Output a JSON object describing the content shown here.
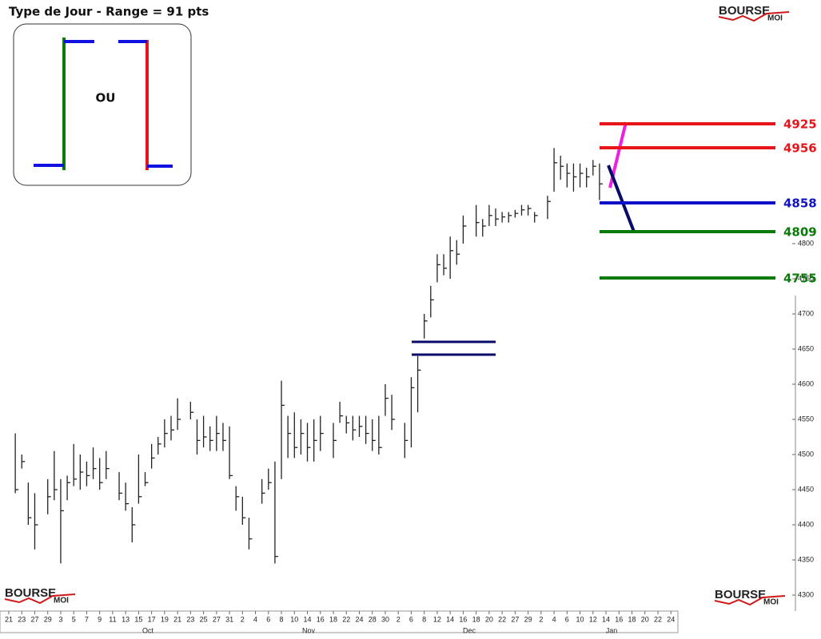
{
  "chart_data": {
    "type": "ohlc",
    "title": "Type de Jour - Range = 91 pts",
    "inset_label": "OU",
    "logo": {
      "main": "BOURSE",
      "sub": "MOI"
    },
    "color": "#222222",
    "categories": [
      "21",
      null,
      "23",
      null,
      "27",
      null,
      "29",
      null,
      "3",
      null,
      "5",
      null,
      "7",
      null,
      "9",
      null,
      "11",
      null,
      "13",
      null,
      "15",
      null,
      "17",
      null,
      "19",
      null,
      "21",
      null,
      "23",
      null,
      "25",
      null,
      "27",
      null,
      "31",
      null,
      "2",
      null,
      "4",
      null,
      "6",
      null,
      "8",
      null,
      "10",
      null,
      "14",
      null,
      "16",
      null,
      "18",
      null,
      "22",
      null,
      "24",
      null,
      "28",
      null,
      "30",
      null,
      "2",
      null,
      "6",
      null,
      "8",
      null,
      "12",
      null,
      "14",
      null,
      "16",
      null,
      "18",
      null,
      "20",
      null,
      "22",
      null,
      "27",
      null,
      "29",
      null,
      "2",
      null,
      "4",
      null,
      "6",
      null,
      "10",
      null,
      "12",
      null,
      "14",
      null,
      "16",
      null,
      "18",
      null,
      "20",
      null,
      "22",
      null,
      "24",
      null
    ],
    "months": [
      "Oct",
      "Nov",
      "Dec",
      "Jan"
    ],
    "high": [
      null,
      4530,
      4500,
      4460,
      4445,
      null,
      4465,
      4505,
      4465,
      4470,
      4515,
      4500,
      4490,
      4510,
      4495,
      4505,
      null,
      4475,
      4460,
      4425,
      4500,
      4475,
      4515,
      4525,
      4550,
      4555,
      4580,
      null,
      4575,
      4550,
      4555,
      4540,
      4555,
      4545,
      4540,
      4455,
      4440,
      4410,
      null,
      4465,
      4480,
      4490,
      4605,
      4555,
      4560,
      4550,
      4545,
      4550,
      4555,
      null,
      4545,
      4575,
      4555,
      4555,
      4555,
      4555,
      4550,
      4555,
      4600,
      4585,
      null,
      4545,
      4610,
      4640,
      4700,
      4740,
      4785,
      4785,
      4810,
      4805,
      4840,
      null,
      4855,
      4835,
      4855,
      4850,
      4845,
      4845,
      4848,
      4855,
      4855,
      4845,
      null,
      4868,
      4936,
      4925,
      4914,
      4914,
      4914,
      4908,
      4919,
      4914,
      null,
      null,
      null,
      null,
      null,
      null,
      null,
      null,
      null,
      null,
      null,
      null
    ],
    "low": [
      null,
      4445,
      4480,
      4400,
      4365,
      null,
      4415,
      4435,
      4345,
      4435,
      4455,
      4450,
      4455,
      4465,
      4450,
      4465,
      null,
      4435,
      4420,
      4375,
      4430,
      4455,
      4480,
      4500,
      4510,
      4520,
      4535,
      null,
      4550,
      4500,
      4510,
      4505,
      4505,
      4505,
      4465,
      4420,
      4400,
      4365,
      null,
      4430,
      4450,
      4345,
      4465,
      4495,
      4495,
      4500,
      4490,
      4490,
      4505,
      null,
      4495,
      4545,
      4530,
      4520,
      4525,
      4515,
      4505,
      4500,
      4555,
      4535,
      null,
      4495,
      4510,
      4560,
      4665,
      4695,
      4745,
      4755,
      4750,
      4770,
      4800,
      null,
      4810,
      4810,
      4825,
      4825,
      4830,
      4830,
      4837,
      4840,
      4840,
      4830,
      null,
      4835,
      4874,
      4891,
      4880,
      4874,
      4880,
      4880,
      4897,
      4862,
      null,
      null,
      null,
      null,
      null,
      null,
      null,
      null,
      null,
      null,
      null,
      null
    ],
    "close": [
      null,
      4450,
      4490,
      4410,
      4400,
      null,
      4440,
      4450,
      4420,
      4460,
      4465,
      4475,
      4470,
      4480,
      4460,
      4480,
      null,
      4445,
      4430,
      4400,
      4440,
      4460,
      4495,
      4515,
      4530,
      4535,
      4550,
      null,
      4560,
      4520,
      4525,
      4520,
      4530,
      4520,
      4470,
      4440,
      4410,
      4380,
      null,
      4445,
      4460,
      4355,
      4570,
      4530,
      4510,
      4530,
      4510,
      4520,
      4530,
      null,
      4520,
      4555,
      4545,
      4535,
      4540,
      4530,
      4520,
      4510,
      4580,
      4550,
      null,
      4520,
      4595,
      4620,
      4690,
      4720,
      4770,
      4765,
      4790,
      4785,
      4825,
      null,
      4830,
      4825,
      4840,
      4835,
      4838,
      4840,
      4843,
      4848,
      4850,
      4840,
      null,
      4860,
      4915,
      4910,
      4900,
      4895,
      4900,
      4895,
      4910,
      4885,
      null,
      null,
      null,
      null,
      null,
      null,
      null,
      null,
      null,
      null,
      null,
      null
    ],
    "ylim": [
      4277.3,
      5146.6
    ],
    "yticks": [
      4300,
      4350,
      4400,
      4450,
      4500,
      4550,
      4600,
      4650,
      4700,
      4750,
      4800
    ],
    "levels": [
      {
        "label": "4925",
        "color": "#e8141a"
      },
      {
        "label": "4956",
        "color": "#e8141a"
      },
      {
        "label": "4858",
        "color": "#1010c8"
      },
      {
        "label": "4809",
        "color": "#0a7a0a"
      },
      {
        "label": "4755",
        "color": "#0a7a0a"
      }
    ]
  }
}
